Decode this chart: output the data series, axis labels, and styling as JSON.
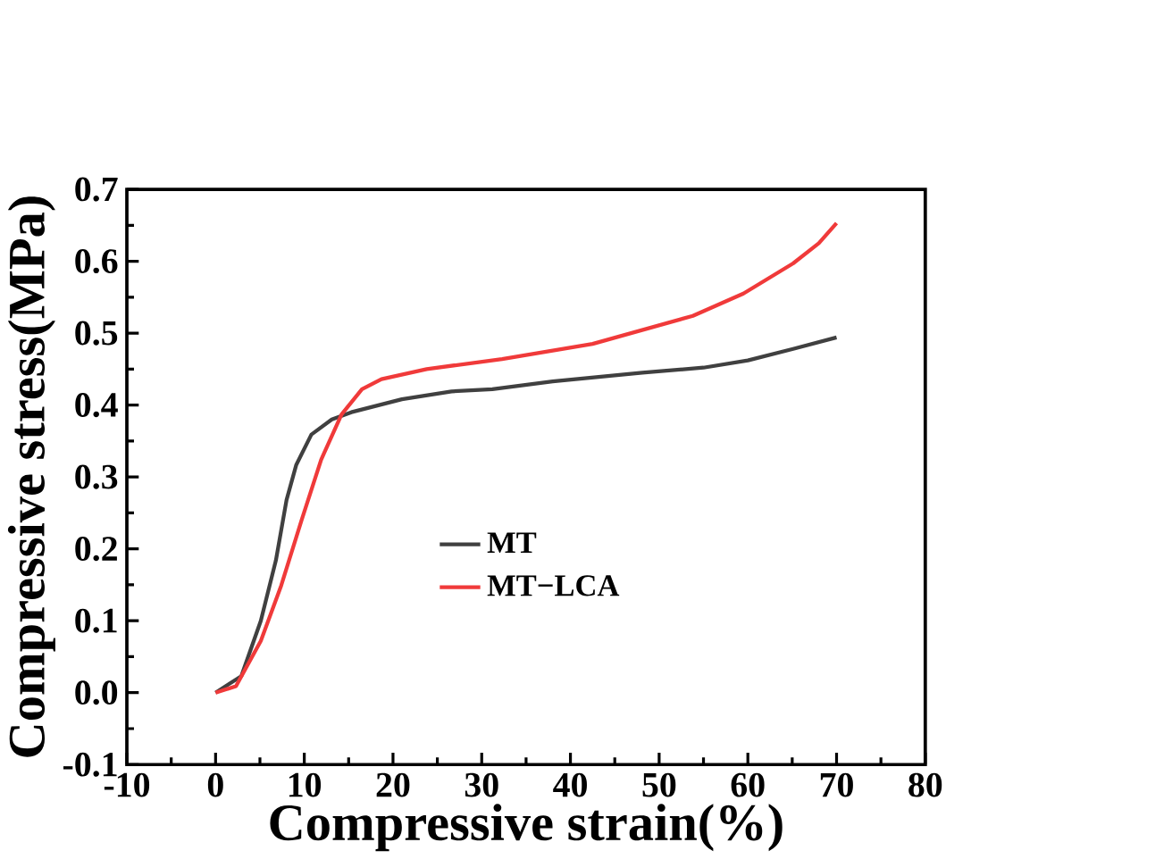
{
  "chart_data": {
    "type": "line",
    "xlabel": "Compressive strain(%)",
    "ylabel": "Compressive stress(MPa)",
    "xlim": [
      -10,
      80
    ],
    "ylim": [
      -0.1,
      0.7
    ],
    "xticks": [
      -10,
      0,
      10,
      20,
      30,
      40,
      50,
      60,
      70,
      80
    ],
    "yticks": [
      {
        "value": -0.1,
        "label": "-0.1"
      },
      {
        "value": 0,
        "label": "0.0"
      },
      {
        "value": 0.1,
        "label": "0.1"
      },
      {
        "value": 0.2,
        "label": "0.2"
      },
      {
        "value": 0.3,
        "label": "0.3"
      },
      {
        "value": 0.4,
        "label": "0.4"
      },
      {
        "value": 0.5,
        "label": "0.5"
      },
      {
        "value": 0.6,
        "label": "0.6"
      },
      {
        "value": 0.7,
        "label": "0.7"
      }
    ],
    "grid": false,
    "legend": "right",
    "marker": "none",
    "line_style": "solid",
    "series": [
      {
        "name": "MT",
        "color": "#404040",
        "x": [
          0,
          2.9,
          5.1,
          6.8,
          8.0,
          9.1,
          10.8,
          13.1,
          15.3,
          21,
          26.6,
          31.2,
          38,
          48.1,
          55,
          60,
          65.1,
          70
        ],
        "values": [
          0,
          0.023,
          0.1,
          0.184,
          0.268,
          0.317,
          0.359,
          0.38,
          0.39,
          0.408,
          0.419,
          0.422,
          0.433,
          0.445,
          0.452,
          0.462,
          0.478,
          0.494
        ]
      },
      {
        "name": "MT−LCA",
        "color": "#f03a3a",
        "x": [
          0,
          2.3,
          5.1,
          7.4,
          9.7,
          11.9,
          14.2,
          16.5,
          18.7,
          23.8,
          32.3,
          42.5,
          53.8,
          59.5,
          65.1,
          68,
          70
        ],
        "values": [
          0,
          0.009,
          0.072,
          0.149,
          0.24,
          0.324,
          0.387,
          0.422,
          0.436,
          0.45,
          0.464,
          0.485,
          0.524,
          0.555,
          0.597,
          0.625,
          0.653
        ]
      }
    ]
  }
}
